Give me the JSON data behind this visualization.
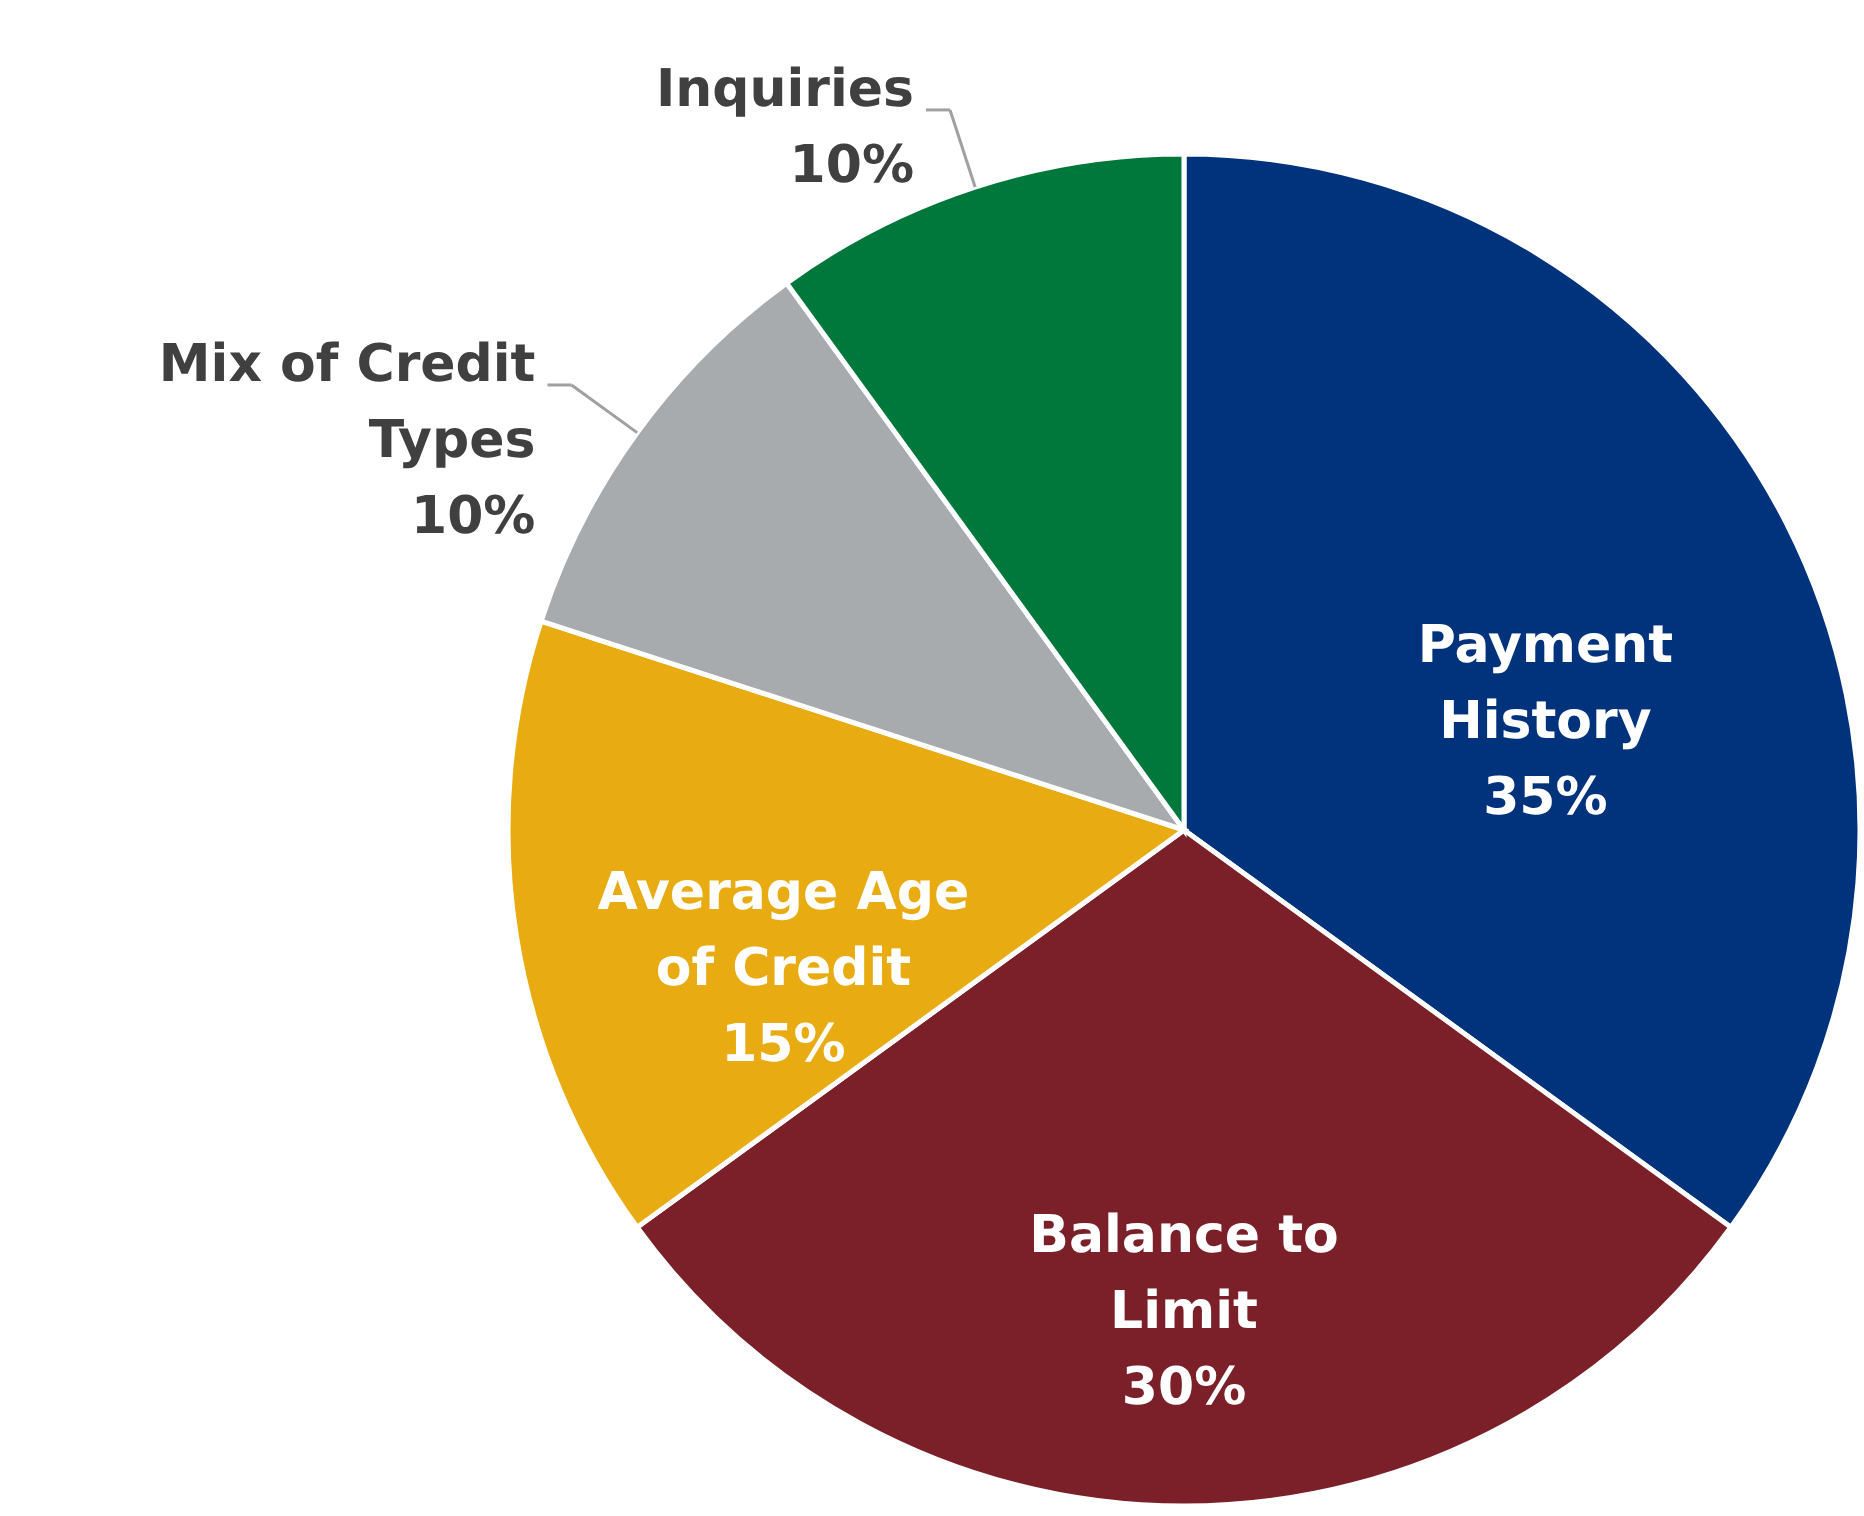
{
  "chart_data": {
    "type": "pie",
    "categories": [
      "Payment History",
      "Balance to Limit",
      "Average Age of Credit",
      "Mix of Credit Types",
      "Inquiries"
    ],
    "values": [
      35,
      30,
      15,
      10,
      10
    ],
    "colors": [
      "#00337c",
      "#7b2029",
      "#e8ac12",
      "#a7abad",
      "#00783c"
    ],
    "value_labels": [
      "35%",
      "30%",
      "15%",
      "10%",
      "10%"
    ]
  }
}
